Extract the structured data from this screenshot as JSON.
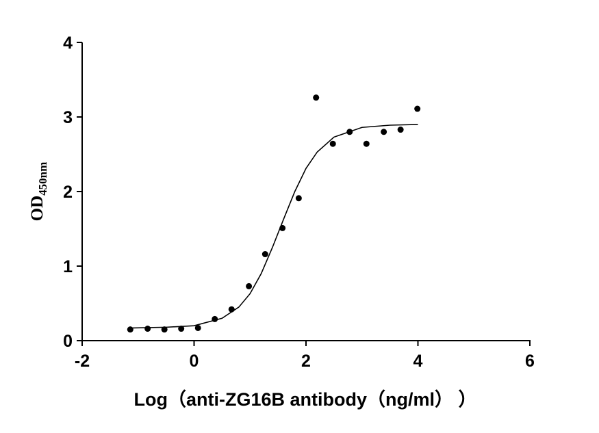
{
  "chart_data": {
    "type": "scatter",
    "x_label": "Log（anti-ZG16B antibody（ng/ml） ）",
    "y_label": "OD",
    "y_label_subscript": "450nm",
    "xlim": [
      -2,
      6
    ],
    "xticks": [
      -2,
      0,
      2,
      4,
      6
    ],
    "ylim": [
      0,
      4
    ],
    "yticks": [
      0,
      1,
      2,
      3,
      4
    ],
    "color": "#000000",
    "series": [
      {
        "kind": "points",
        "x": [
          -1.14,
          -0.83,
          -0.53,
          -0.23,
          0.07,
          0.37,
          0.67,
          0.98,
          1.27,
          1.58,
          1.87,
          2.18,
          2.48,
          2.78,
          3.08,
          3.39,
          3.69,
          3.99
        ],
        "values": [
          0.15,
          0.16,
          0.15,
          0.16,
          0.17,
          0.29,
          0.42,
          0.73,
          1.16,
          1.51,
          1.91,
          3.26,
          2.64,
          2.8,
          2.64,
          2.8,
          2.83,
          3.11
        ]
      },
      {
        "kind": "curve",
        "x": [
          -1.1,
          -0.5,
          0,
          0.5,
          0.8,
          1.0,
          1.2,
          1.4,
          1.6,
          1.8,
          2.0,
          2.2,
          2.5,
          3.0,
          3.5,
          4.0
        ],
        "values": [
          0.17,
          0.18,
          0.2,
          0.3,
          0.45,
          0.63,
          0.9,
          1.25,
          1.63,
          2.0,
          2.31,
          2.53,
          2.73,
          2.86,
          2.89,
          2.9
        ]
      }
    ]
  }
}
